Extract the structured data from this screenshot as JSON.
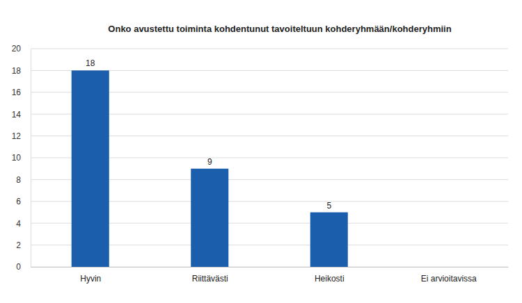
{
  "chart_data": {
    "type": "bar",
    "title": "Onko avustettu toiminta kohdentunut tavoiteltuun kohderyhmään/kohderyhmiin",
    "categories": [
      "Hyvin",
      "Riittävästi",
      "Heikosti",
      "Ei arvioitavissa"
    ],
    "values": [
      18,
      9,
      5,
      null
    ],
    "color": "#1b5eab",
    "ylim": [
      0,
      20
    ],
    "yticks": [
      0,
      2,
      4,
      6,
      8,
      10,
      12,
      14,
      16,
      18,
      20
    ],
    "grid": true,
    "data_labels": true
  }
}
